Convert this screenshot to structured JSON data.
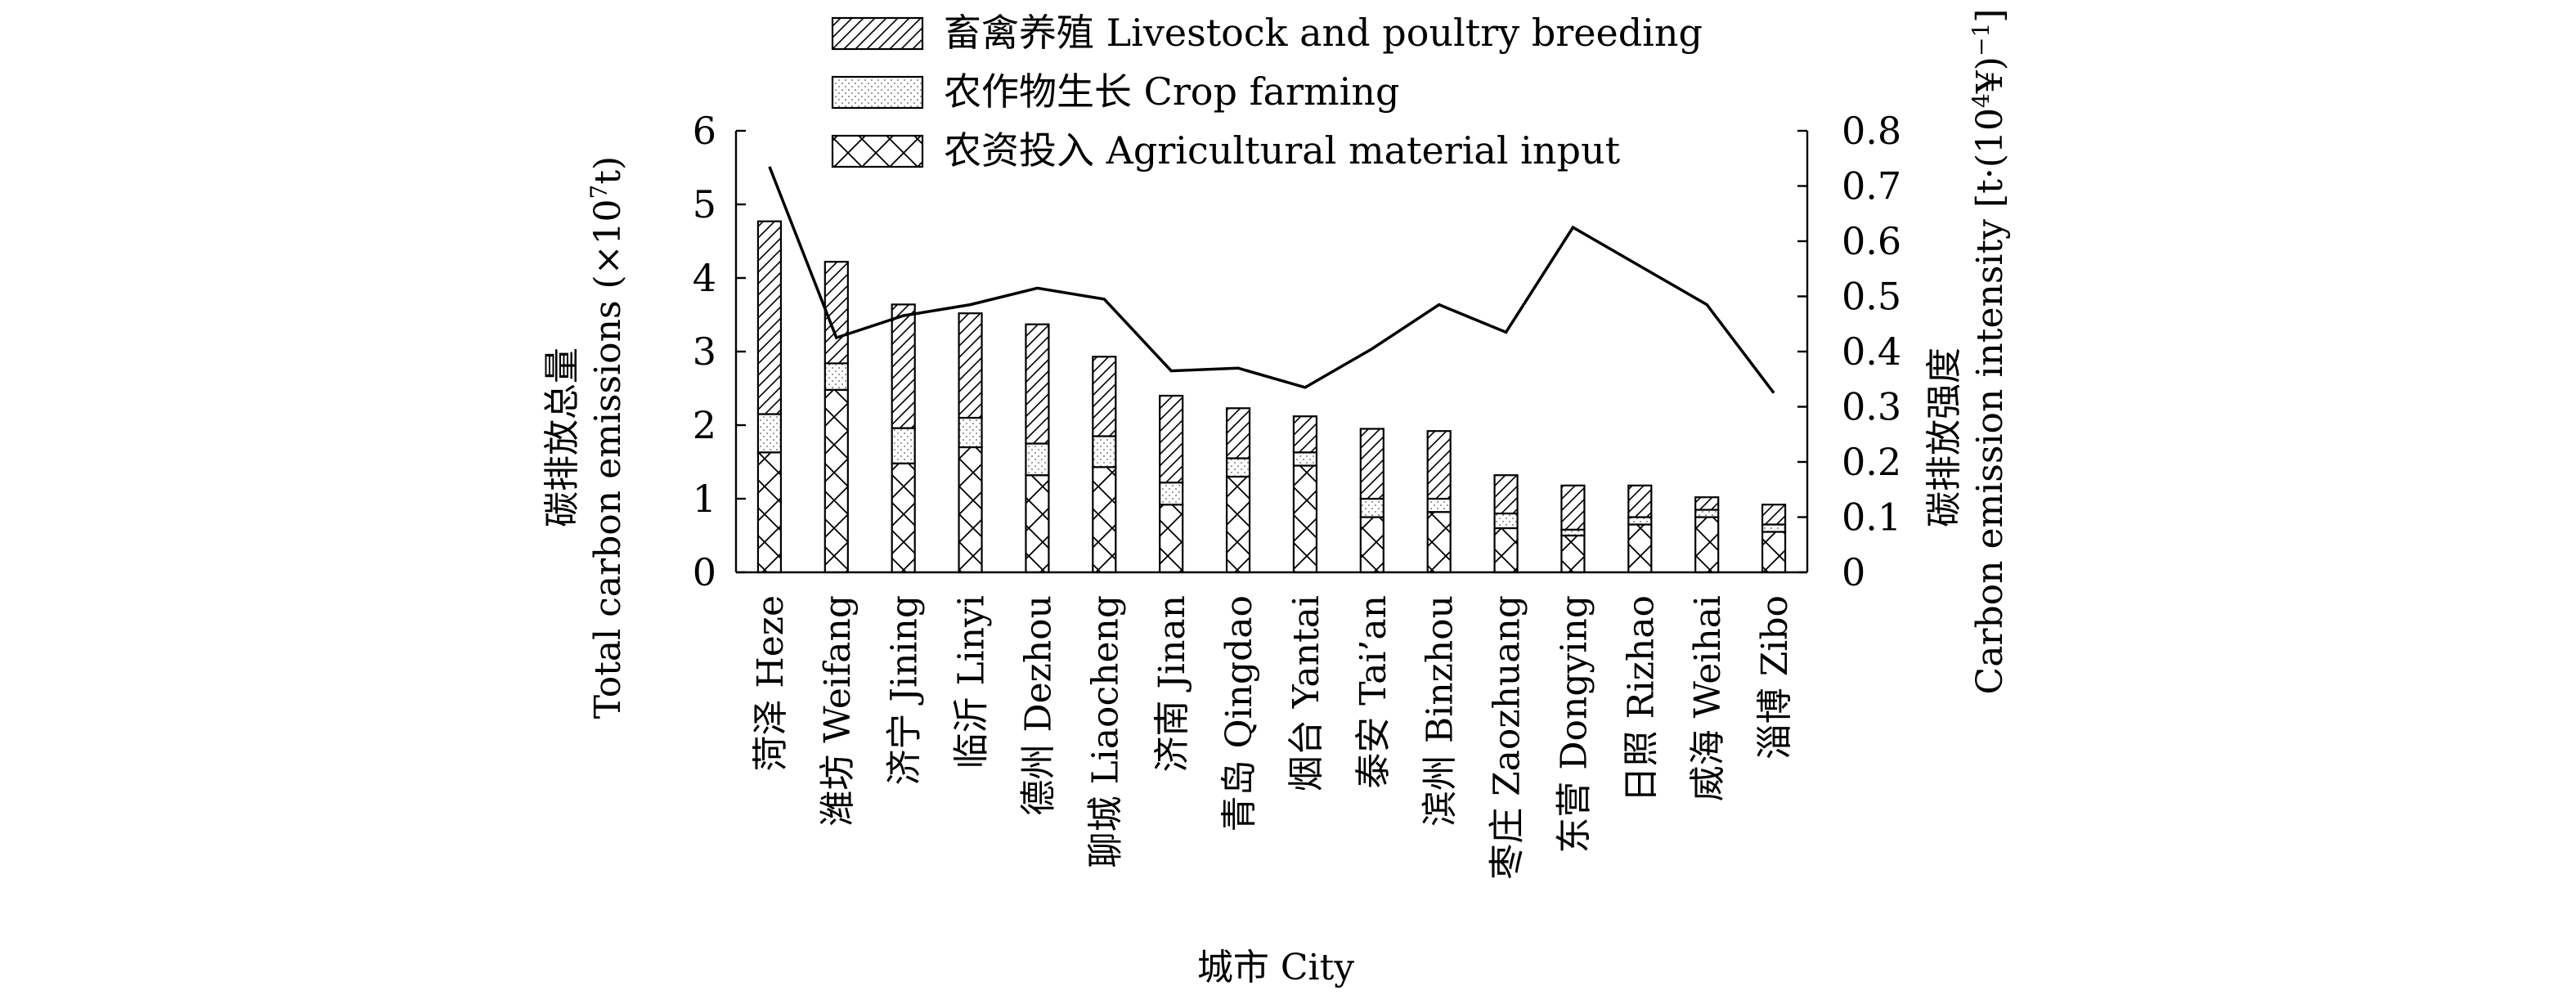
{
  "chart_data": {
    "type": "bar",
    "stacked": true,
    "categories": [
      "菏泽 Heze",
      "潍坊 Weifang",
      "济宁 Jining",
      "临沂 Linyi",
      "德州 Dezhou",
      "聊城 Liaocheng",
      "济南 Jinan",
      "青岛 Qingdao",
      "烟台 Yantai",
      "泰安 Tai’an",
      "滨州 Binzhou",
      "枣庄 Zaozhuang",
      "东营 Dongying",
      "日照 Rizhao",
      "威海 Weihai",
      "淄博 Zibo"
    ],
    "series": [
      {
        "name": "农资投入 Agricultural material input",
        "pattern": "cross-hatch",
        "values": [
          1.63,
          2.48,
          1.48,
          1.7,
          1.32,
          1.43,
          0.92,
          1.3,
          1.45,
          0.75,
          0.82,
          0.6,
          0.5,
          0.65,
          0.75,
          0.55
        ]
      },
      {
        "name": "农作物生长 Crop farming",
        "pattern": "dots",
        "values": [
          0.52,
          0.36,
          0.48,
          0.4,
          0.43,
          0.42,
          0.3,
          0.25,
          0.18,
          0.25,
          0.18,
          0.2,
          0.08,
          0.1,
          0.1,
          0.1
        ]
      },
      {
        "name": "畜禽养殖 Livestock and poultry breeding",
        "pattern": "diagonal",
        "values": [
          2.62,
          1.38,
          1.68,
          1.42,
          1.62,
          1.08,
          1.18,
          0.68,
          0.49,
          0.95,
          0.92,
          0.52,
          0.6,
          0.43,
          0.17,
          0.27
        ]
      }
    ],
    "line_series": {
      "name": "碳排放强度 Carbon emission intensity",
      "axis": "right",
      "values": [
        0.735,
        0.425,
        0.465,
        0.485,
        0.515,
        0.495,
        0.365,
        0.37,
        0.335,
        0.405,
        0.485,
        0.435,
        0.625,
        0.555,
        0.485,
        0.325
      ]
    },
    "xlabel": "城市 City",
    "ylabel_cn": "碳排放总量",
    "ylabel_en_pre": "Total carbon emissions (×10",
    "ylabel_en_sup": "7",
    "ylabel_en_post": "t)",
    "y2label_cn": "碳排放强度",
    "y2label_en_pre": "Carbon emission intensity [t·(10",
    "y2label_en_sup1": "4",
    "y2label_en_mid": "¥)",
    "y2label_en_sup2": "−1",
    "y2label_en_post": "]",
    "ylim": [
      0,
      6
    ],
    "yticks": [
      "0",
      "1",
      "2",
      "3",
      "4",
      "5",
      "6"
    ],
    "y2lim": [
      0,
      0.8
    ],
    "y2ticks": [
      "0",
      "0.1",
      "0.2",
      "0.3",
      "0.4",
      "0.5",
      "0.6",
      "0.7",
      "0.8"
    ],
    "legend": [
      {
        "label": "畜禽养殖 Livestock and poultry breeding",
        "pattern": "diagonal"
      },
      {
        "label": "农作物生长 Crop farming",
        "pattern": "dots"
      },
      {
        "label": "农资投入 Agricultural material input",
        "pattern": "cross-hatch"
      }
    ],
    "legend_position": "top-center",
    "grid": false
  }
}
